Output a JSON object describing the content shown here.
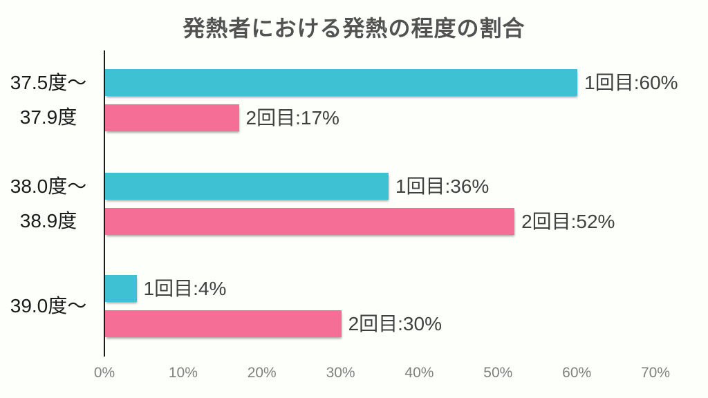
{
  "title": "発熱者における発熱の程度の割合",
  "chart_data": {
    "type": "bar",
    "orientation": "horizontal",
    "title": "発熱者における発熱の程度の割合",
    "categories": [
      "37.5度〜 37.9度",
      "38.0度〜 38.9度",
      "39.0度〜"
    ],
    "category_lines": [
      [
        "37.5度〜",
        "37.9度"
      ],
      [
        "38.0度〜",
        "38.9度"
      ],
      [
        "39.0度〜"
      ]
    ],
    "series": [
      {
        "name": "1回目",
        "color": "#3ec1d3",
        "values": [
          60,
          36,
          4
        ],
        "labels": [
          "1回目:60%",
          "1回目:36%",
          "1回目:4%"
        ]
      },
      {
        "name": "2回目",
        "color": "#f46e96",
        "values": [
          17,
          52,
          30
        ],
        "labels": [
          "2回目:17%",
          "2回目:52%",
          "2回目:30%"
        ]
      }
    ],
    "xlabel": "",
    "ylabel": "",
    "xlim": [
      0,
      70
    ],
    "x_ticks": [
      "0%",
      "10%",
      "20%",
      "30%",
      "40%",
      "50%",
      "60%",
      "70%"
    ],
    "x_tick_values": [
      0,
      10,
      20,
      30,
      40,
      50,
      60,
      70
    ],
    "grid": false,
    "legend_position": "none",
    "label_placement": "outside-end-of-bar",
    "colors": {
      "background": "#fdfffb",
      "title_text": "#525252",
      "category_text": "#1a1a1a",
      "bar_label_text": "#404040",
      "tick_text": "#808080",
      "axis_line": "#1a1a1a"
    }
  }
}
